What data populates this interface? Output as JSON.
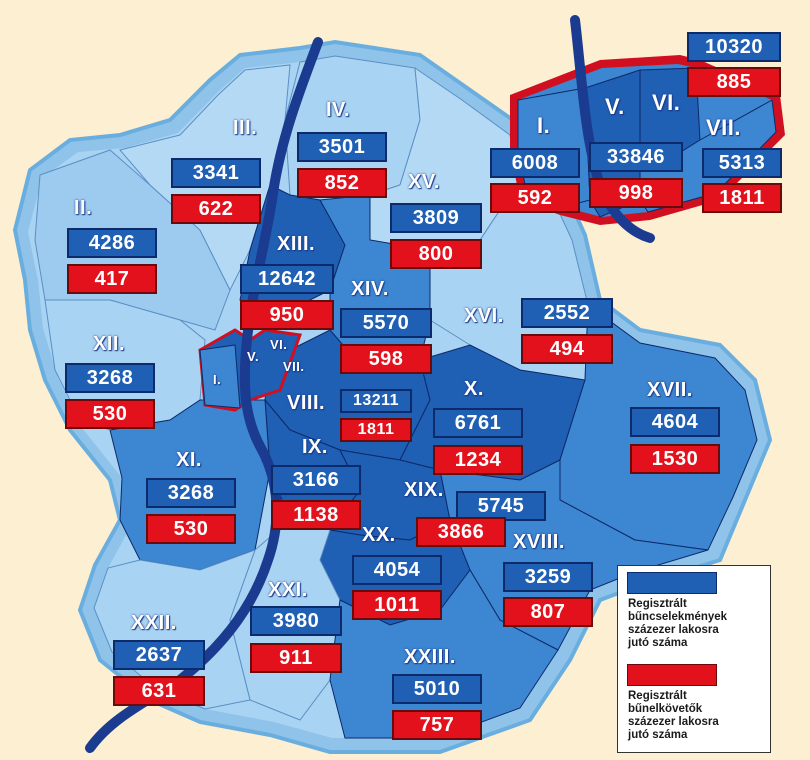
{
  "districts": [
    {
      "id": "I",
      "label": "I.",
      "crimes": "6008",
      "offenders": "592"
    },
    {
      "id": "II",
      "label": "II.",
      "crimes": "4286",
      "offenders": "417"
    },
    {
      "id": "III",
      "label": "III.",
      "crimes": "3341",
      "offenders": "622"
    },
    {
      "id": "IV",
      "label": "IV.",
      "crimes": "3501",
      "offenders": "852"
    },
    {
      "id": "V",
      "label": "V.",
      "crimes": "33846",
      "offenders": "998"
    },
    {
      "id": "VI",
      "label": "VI.",
      "crimes": "10320",
      "offenders": "885"
    },
    {
      "id": "VII",
      "label": "VII.",
      "crimes": "5313",
      "offenders": "1811"
    },
    {
      "id": "VIII",
      "label": "VIII.",
      "crimes": "13211",
      "offenders": "1811"
    },
    {
      "id": "IX",
      "label": "IX.",
      "crimes": "3166",
      "offenders": "1138"
    },
    {
      "id": "X",
      "label": "X.",
      "crimes": "6761",
      "offenders": "1234"
    },
    {
      "id": "XI",
      "label": "XI.",
      "crimes": "3268",
      "offenders": "530"
    },
    {
      "id": "XII",
      "label": "XII.",
      "crimes": "3268",
      "offenders": "530"
    },
    {
      "id": "XIII",
      "label": "XIII.",
      "crimes": "12642",
      "offenders": "950"
    },
    {
      "id": "XIV",
      "label": "XIV.",
      "crimes": "5570",
      "offenders": "598"
    },
    {
      "id": "XV",
      "label": "XV.",
      "crimes": "3809",
      "offenders": "800"
    },
    {
      "id": "XVI",
      "label": "XVI.",
      "crimes": "2552",
      "offenders": "494"
    },
    {
      "id": "XVII",
      "label": "XVII.",
      "crimes": "4604",
      "offenders": "1530"
    },
    {
      "id": "XVIII",
      "label": "XVIII.",
      "crimes": "3259",
      "offenders": "807"
    },
    {
      "id": "XIX",
      "label": "XIX.",
      "crimes": "5745",
      "offenders": "3866"
    },
    {
      "id": "XX",
      "label": "XX.",
      "crimes": "4054",
      "offenders": "1011"
    },
    {
      "id": "XXI",
      "label": "XXI.",
      "crimes": "3980",
      "offenders": "911"
    },
    {
      "id": "XXII",
      "label": "XXII.",
      "crimes": "2637",
      "offenders": "631"
    },
    {
      "id": "XXIII",
      "label": "XXIII.",
      "crimes": "5010",
      "offenders": "757"
    }
  ],
  "center_labels": {
    "I": "I.",
    "V": "V.",
    "VI": "VI.",
    "VII": "VII."
  },
  "legend": {
    "crimes_text": "Regisztrált\nbűncselekmények\nszázezer lakosra\njutó száma",
    "offenders_text": "Regisztrált\nbűnelkövetők\nszázezer lakosra\njutó száma"
  },
  "colors": {
    "background": "#fcefd2",
    "outer_rim": "#8fc3ea",
    "light_district": "#a9d3f2",
    "mid_district": "#3d86d1",
    "dark_district": "#1f5fb4",
    "river": "#1a3b8f",
    "crime_box": "#1f5fb4",
    "offender_box": "#e3111c",
    "highlight_border": "#d01020"
  },
  "icons": {
    "river": "danube-river-line"
  }
}
